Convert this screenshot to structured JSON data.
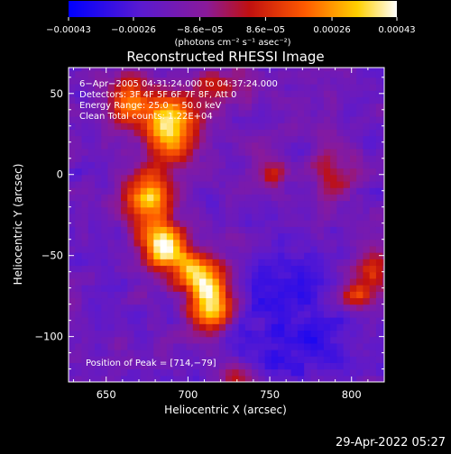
{
  "footer": {
    "timestamp": "29-Apr-2022 05:27"
  },
  "colors": {
    "background": "#000000",
    "text": "#ffffff",
    "colormap": "rhessi-blue-purple-red-yellow-white"
  },
  "chart_data": {
    "type": "heatmap",
    "title": "Reconstructed RHESSI Image",
    "xlabel": "Heliocentric X (arcsec)",
    "ylabel": "Heliocentric Y (arcsec)",
    "xlim": [
      627,
      820
    ],
    "ylim": [
      -128,
      66
    ],
    "xticks": [
      650,
      700,
      750,
      800
    ],
    "yticks": [
      50,
      0,
      -50,
      -100
    ],
    "xtick_labels": [
      "650",
      "700",
      "750",
      "800"
    ],
    "ytick_labels": [
      "50",
      "0",
      "−50",
      "−100"
    ],
    "colorbar": {
      "min": -0.00043,
      "max": 0.00043,
      "ticks": [
        -0.00043,
        -0.00026,
        -8.6e-05,
        8.6e-05,
        0.00026,
        0.00043
      ],
      "tick_labels": [
        "−0.00043",
        "−0.00026",
        "−8.6e−05",
        "8.6e−05",
        "0.00026",
        "0.00043"
      ],
      "units": "(photons cm⁻² s⁻¹ asec⁻²)"
    },
    "annotations": [
      "6−Apr−2005 04:31:24.000 to 04:37:24.000",
      "Detectors: 3F 4F 5F 6F 7F 8F, Att 0",
      "Energy Range: 25.0 − 50.0 keV",
      "Clean    Total counts: 1.22E+04"
    ],
    "peak_label": "Position of Peak = [714,−79]",
    "peak": {
      "x": 714,
      "y": -79
    },
    "sources": [
      {
        "x": 714,
        "y": -79,
        "amp": 1.0,
        "sx": 9,
        "sy": 12
      },
      {
        "x": 686,
        "y": -45,
        "amp": 0.9,
        "sx": 10,
        "sy": 10
      },
      {
        "x": 690,
        "y": 30,
        "amp": 0.85,
        "sx": 11,
        "sy": 14
      },
      {
        "x": 676,
        "y": -15,
        "amp": 0.8,
        "sx": 11,
        "sy": 12
      },
      {
        "x": 665,
        "y": 45,
        "amp": 0.6,
        "sx": 10,
        "sy": 10
      },
      {
        "x": 705,
        "y": -60,
        "amp": 0.65,
        "sx": 9,
        "sy": 9
      },
      {
        "x": 720,
        "y": 55,
        "amp": 0.35,
        "sx": 12,
        "sy": 9
      },
      {
        "x": 812,
        "y": -60,
        "amp": 0.45,
        "sx": 8,
        "sy": 12
      },
      {
        "x": 800,
        "y": -75,
        "amp": 0.4,
        "sx": 6,
        "sy": 6
      },
      {
        "x": 752,
        "y": 0,
        "amp": 0.35,
        "sx": 6,
        "sy": 6
      },
      {
        "x": 790,
        "y": 0,
        "amp": 0.3,
        "sx": 8,
        "sy": 12
      },
      {
        "x": 730,
        "y": -125,
        "amp": 0.3,
        "sx": 10,
        "sy": 6
      }
    ]
  }
}
